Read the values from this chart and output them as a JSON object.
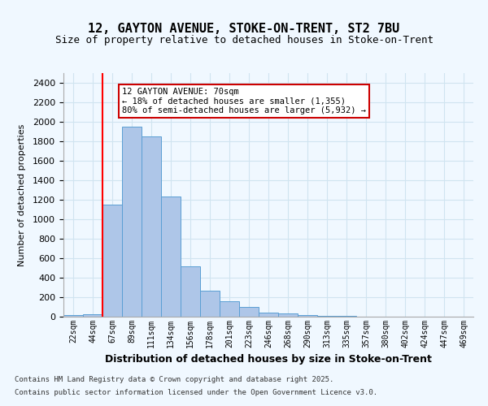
{
  "title1": "12, GAYTON AVENUE, STOKE-ON-TRENT, ST2 7BU",
  "title2": "Size of property relative to detached houses in Stoke-on-Trent",
  "xlabel": "Distribution of detached houses by size in Stoke-on-Trent",
  "ylabel": "Number of detached properties",
  "categories": [
    "22sqm",
    "44sqm",
    "67sqm",
    "89sqm",
    "111sqm",
    "134sqm",
    "156sqm",
    "178sqm",
    "201sqm",
    "223sqm",
    "246sqm",
    "268sqm",
    "290sqm",
    "313sqm",
    "335sqm",
    "357sqm",
    "380sqm",
    "402sqm",
    "424sqm",
    "447sqm",
    "469sqm"
  ],
  "values": [
    20,
    25,
    1150,
    1950,
    1850,
    1230,
    520,
    270,
    155,
    100,
    45,
    35,
    15,
    8,
    5,
    3,
    2,
    2,
    2,
    2,
    2
  ],
  "bar_color": "#aec6e8",
  "bar_edge_color": "#5a9fd4",
  "red_line_x": 2,
  "annotation_text": "12 GAYTON AVENUE: 70sqm\n← 18% of detached houses are smaller (1,355)\n80% of semi-detached houses are larger (5,932) →",
  "annotation_box_color": "#ffffff",
  "annotation_box_edge": "#cc0000",
  "grid_color": "#d0e4f0",
  "background_color": "#f0f8ff",
  "footer1": "Contains HM Land Registry data © Crown copyright and database right 2025.",
  "footer2": "Contains public sector information licensed under the Open Government Licence v3.0.",
  "ylim": [
    0,
    2500
  ],
  "yticks": [
    0,
    200,
    400,
    600,
    800,
    1000,
    1200,
    1400,
    1600,
    1800,
    2000,
    2200,
    2400
  ]
}
